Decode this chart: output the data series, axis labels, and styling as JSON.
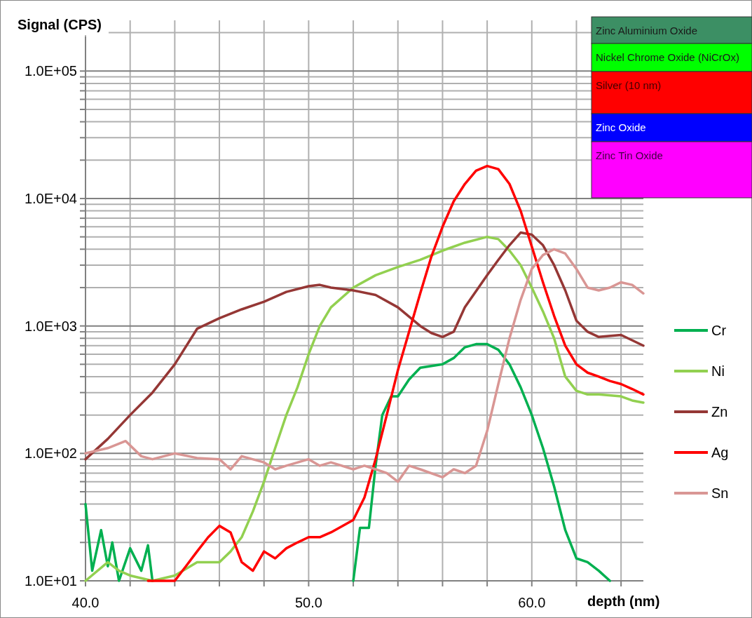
{
  "chart_data": {
    "type": "line",
    "xlabel": "depth (nm)",
    "ylabel": "Signal (CPS)",
    "log": "y",
    "grid": true,
    "legend": "right",
    "line_style": "solid",
    "xlim": [
      40,
      65
    ],
    "ylim": [
      10,
      250000
    ],
    "xticks": [
      {
        "value": 40,
        "label": "40.0"
      },
      {
        "value": 42,
        "label": null
      },
      {
        "value": 44,
        "label": null
      },
      {
        "value": 46,
        "label": null
      },
      {
        "value": 48,
        "label": null
      },
      {
        "value": 50,
        "label": "50.0"
      },
      {
        "value": 52,
        "label": null
      },
      {
        "value": 54,
        "label": null
      },
      {
        "value": 56,
        "label": null
      },
      {
        "value": 58,
        "label": null
      },
      {
        "value": 60,
        "label": "60.0"
      },
      {
        "value": 62,
        "label": null
      },
      {
        "value": 64,
        "label": null
      }
    ],
    "yticks": [
      {
        "value": 10,
        "label": "1.0E+01"
      },
      {
        "value": 20,
        "label": null
      },
      {
        "value": 30,
        "label": null
      },
      {
        "value": 40,
        "label": null
      },
      {
        "value": 50,
        "label": null
      },
      {
        "value": 60,
        "label": null
      },
      {
        "value": 70,
        "label": null
      },
      {
        "value": 80,
        "label": null
      },
      {
        "value": 90,
        "label": null
      },
      {
        "value": 100,
        "label": "1.0E+02"
      },
      {
        "value": 200,
        "label": null
      },
      {
        "value": 300,
        "label": null
      },
      {
        "value": 400,
        "label": null
      },
      {
        "value": 500,
        "label": null
      },
      {
        "value": 600,
        "label": null
      },
      {
        "value": 700,
        "label": null
      },
      {
        "value": 800,
        "label": null
      },
      {
        "value": 900,
        "label": null
      },
      {
        "value": 1000,
        "label": "1.0E+03"
      },
      {
        "value": 2000,
        "label": null
      },
      {
        "value": 3000,
        "label": null
      },
      {
        "value": 4000,
        "label": null
      },
      {
        "value": 5000,
        "label": null
      },
      {
        "value": 6000,
        "label": null
      },
      {
        "value": 7000,
        "label": null
      },
      {
        "value": 8000,
        "label": null
      },
      {
        "value": 9000,
        "label": null
      },
      {
        "value": 10000,
        "label": "1.0E+04"
      },
      {
        "value": 20000,
        "label": null
      },
      {
        "value": 30000,
        "label": null
      },
      {
        "value": 40000,
        "label": null
      },
      {
        "value": 50000,
        "label": null
      },
      {
        "value": 60000,
        "label": null
      },
      {
        "value": 70000,
        "label": null
      },
      {
        "value": 80000,
        "label": null
      },
      {
        "value": 90000,
        "label": null
      },
      {
        "value": 100000,
        "label": "1.0E+05"
      },
      {
        "value": 200000,
        "label": null
      }
    ],
    "annotations": [
      "Zinc Aluminium Oxide",
      "Nickel Chrome Oxide (NiCrOx)",
      "Silver (10 nm)",
      "Zinc Oxide",
      "Zinc Tin Oxide"
    ],
    "series": [
      {
        "name": "Cr",
        "color": "#00b050",
        "x": [
          40,
          40.3,
          40.7,
          41,
          41.2,
          41.5,
          42,
          42.5,
          42.8,
          43,
          43.2,
          51.8,
          52,
          52.3,
          52.7,
          53,
          53.3,
          53.7,
          54,
          54.5,
          55,
          56,
          56.5,
          57,
          57.5,
          58,
          58.5,
          59,
          59.5,
          60,
          60.5,
          61,
          61.5,
          62,
          62.5,
          63,
          63.5
        ],
        "values": [
          40,
          12,
          25,
          13,
          20,
          10,
          18,
          12,
          19,
          10,
          null,
          null,
          10,
          26,
          26,
          80,
          200,
          280,
          280,
          380,
          470,
          500,
          560,
          680,
          720,
          720,
          650,
          500,
          330,
          200,
          110,
          55,
          25,
          15,
          14,
          12,
          10
        ]
      },
      {
        "name": "Ni",
        "color": "#92d050",
        "x": [
          40,
          41,
          41.5,
          42,
          43,
          44,
          45,
          46,
          46.5,
          47,
          47.5,
          48,
          48.5,
          49,
          49.5,
          50,
          50.5,
          51,
          52,
          53,
          54,
          55,
          56,
          57,
          58,
          58.5,
          59,
          59.5,
          60,
          60.5,
          61,
          61.5,
          62,
          62.5,
          63,
          64,
          64.5,
          65
        ],
        "values": [
          10,
          14,
          12,
          11,
          10,
          11,
          14,
          14,
          17,
          22,
          35,
          60,
          110,
          200,
          330,
          600,
          1000,
          1400,
          2000,
          2500,
          2900,
          3300,
          3900,
          4500,
          5000,
          4800,
          3900,
          3000,
          2000,
          1300,
          800,
          400,
          310,
          290,
          290,
          280,
          260,
          250
        ]
      },
      {
        "name": "Zn",
        "color": "#953735",
        "x": [
          40,
          41,
          42,
          43,
          44,
          45,
          46,
          47,
          48,
          49,
          50,
          50.5,
          51,
          52,
          53,
          54,
          55,
          55.5,
          56,
          56.5,
          57,
          58,
          58.5,
          59,
          59.5,
          60,
          60.5,
          61,
          61.5,
          62,
          62.5,
          63,
          64,
          65
        ],
        "values": [
          90,
          130,
          200,
          300,
          500,
          950,
          1150,
          1350,
          1550,
          1850,
          2050,
          2100,
          2000,
          1900,
          1750,
          1400,
          1000,
          880,
          820,
          900,
          1400,
          2500,
          3300,
          4300,
          5400,
          5200,
          4300,
          3000,
          1900,
          1100,
          900,
          820,
          850,
          700
        ]
      },
      {
        "name": "Ag",
        "color": "#ff0000",
        "x": [
          42.8,
          43,
          44,
          44.5,
          45,
          45.5,
          46,
          46.5,
          47,
          47.5,
          48,
          48.5,
          49,
          49.5,
          50,
          50.5,
          51,
          52,
          52.5,
          53,
          53.5,
          54,
          54.5,
          55,
          55.5,
          56,
          56.5,
          57,
          57.5,
          58,
          58.5,
          59,
          59.5,
          60,
          60.5,
          61,
          61.5,
          62,
          62.5,
          63,
          63.5,
          64,
          64.5,
          65
        ],
        "values": [
          10,
          10,
          10,
          13,
          17,
          22,
          27,
          24,
          14,
          12,
          17,
          15,
          18,
          20,
          22,
          22,
          24,
          30,
          45,
          90,
          200,
          450,
          900,
          1800,
          3500,
          6000,
          9500,
          13000,
          16500,
          18000,
          17000,
          13000,
          8000,
          4200,
          2200,
          1200,
          700,
          500,
          430,
          400,
          370,
          350,
          320,
          290
        ]
      },
      {
        "name": "Sn",
        "color": "#d99694",
        "x": [
          40,
          41,
          41.8,
          42.5,
          43,
          44,
          45,
          46,
          46.5,
          47,
          48,
          48.5,
          49,
          50,
          50.5,
          51,
          52,
          52.5,
          53,
          53.5,
          54,
          54.5,
          55,
          56,
          56.5,
          57,
          57.5,
          58,
          58.5,
          59,
          59.5,
          60,
          60.5,
          61,
          61.5,
          62,
          62.5,
          63,
          63.5,
          64,
          64.5,
          65
        ],
        "values": [
          100,
          110,
          125,
          95,
          90,
          100,
          92,
          90,
          75,
          95,
          85,
          75,
          80,
          90,
          80,
          85,
          75,
          80,
          75,
          70,
          60,
          80,
          75,
          65,
          75,
          70,
          80,
          150,
          350,
          800,
          1600,
          2800,
          3600,
          4000,
          3700,
          2800,
          2000,
          1900,
          2000,
          2200,
          2100,
          1800
        ]
      }
    ]
  }
}
